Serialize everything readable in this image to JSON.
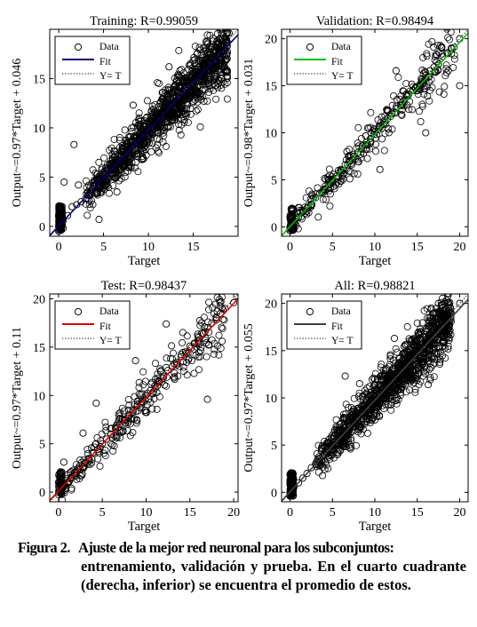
{
  "chart_data": [
    {
      "type": "scatter",
      "title": "Training: R=0.99059",
      "xlabel": "Target",
      "ylabel": "Output~=0.97*Target + 0.046",
      "xlim": [
        -1,
        20
      ],
      "ylim": [
        -1,
        20
      ],
      "xticks": [
        0,
        5,
        10,
        15
      ],
      "yticks": [
        0,
        5,
        10,
        15
      ],
      "fit": {
        "slope": 0.97,
        "intercept": 0.046,
        "color": "#000080"
      },
      "legend": {
        "position": "top-left",
        "entries": [
          "Data",
          "Fit",
          "Y= T"
        ]
      },
      "density": "high",
      "series": [
        {
          "name": "Data",
          "x": [
            0,
            0,
            0,
            0.2,
            0.5,
            1,
            1.5,
            2,
            2.5,
            3,
            3.5,
            4,
            4.5,
            5,
            5.5,
            6,
            6.5,
            7,
            7.5,
            8,
            8.5,
            9,
            9.5,
            10,
            10.5,
            11,
            11.5,
            12,
            12.5,
            13,
            13.5,
            14,
            14.5,
            15,
            15.5,
            16,
            16.5,
            17,
            17.5,
            18,
            19,
            1.7,
            0.6,
            4.5,
            12.3,
            14,
            0.5,
            2.2,
            6.5,
            8.3,
            16.2
          ],
          "y": [
            0,
            1.2,
            -0.5,
            2,
            0.6,
            1.1,
            2,
            2.2,
            2.5,
            2.8,
            3.6,
            4.1,
            4.5,
            5,
            5.6,
            6.2,
            6.5,
            6.8,
            7.5,
            8,
            8.7,
            9.1,
            9.4,
            10,
            10.6,
            11,
            11.6,
            12.1,
            12.5,
            12.7,
            13.4,
            14,
            14.6,
            14.9,
            15.5,
            15.8,
            16.2,
            17,
            17.3,
            18,
            19.6,
            8.3,
            4.5,
            0.7,
            16.2,
            10.8,
            -0.2,
            4.2,
            3.5,
            12.3,
            12.7
          ]
        }
      ]
    },
    {
      "type": "scatter",
      "title": "Validation: R=0.98494",
      "xlabel": "Target",
      "ylabel": "Output~=0.98*Target + 0.031",
      "xlim": [
        -1,
        21
      ],
      "ylim": [
        -1,
        21
      ],
      "xticks": [
        0,
        5,
        10,
        15,
        20
      ],
      "yticks": [
        0,
        5,
        10,
        15,
        20
      ],
      "fit": {
        "slope": 0.98,
        "intercept": 0.031,
        "color": "#00c000"
      },
      "legend": {
        "position": "top-left",
        "entries": [
          "Data",
          "Fit",
          "Y= T"
        ]
      },
      "density": "medium",
      "series": [
        {
          "name": "Data",
          "x": [
            0,
            0,
            0,
            0.5,
            1,
            1.5,
            2,
            2.5,
            3,
            3.5,
            4,
            4.5,
            5,
            5.5,
            6,
            6.5,
            7,
            7.5,
            8,
            8.5,
            9,
            9.5,
            10,
            10.5,
            11,
            11.5,
            12,
            12.5,
            13,
            13.5,
            14,
            14.5,
            15,
            15.5,
            16,
            16.5,
            17,
            17.5,
            18,
            18.5,
            19,
            20,
            20,
            12.5,
            16,
            6.7,
            10.6
          ],
          "y": [
            0,
            1,
            -0.4,
            0.4,
            1,
            1.6,
            2,
            2.4,
            3.1,
            3.6,
            4,
            4.5,
            5,
            5.4,
            6.1,
            6.6,
            7,
            7.5,
            7.9,
            8.6,
            9,
            9.4,
            10.1,
            10.6,
            10.9,
            11.5,
            12,
            12.6,
            12.9,
            13.5,
            14.1,
            14.5,
            14.9,
            15.4,
            16.1,
            16.6,
            17,
            17.3,
            18.1,
            18.5,
            19,
            20,
            15,
            16.6,
            10,
            8,
            6.1
          ]
        }
      ]
    },
    {
      "type": "scatter",
      "title": "Test: R=0.98437",
      "xlabel": "Target",
      "ylabel": "Output~=0.97*Target + 0.11",
      "xlim": [
        -1,
        20.5
      ],
      "ylim": [
        -1,
        20.5
      ],
      "xticks": [
        0,
        5,
        10,
        15,
        20
      ],
      "yticks": [
        0,
        5,
        10,
        15,
        20
      ],
      "fit": {
        "slope": 0.97,
        "intercept": 0.11,
        "color": "#e00000"
      },
      "legend": {
        "position": "top-left",
        "entries": [
          "Data",
          "Fit",
          "Y= T"
        ]
      },
      "density": "medium",
      "series": [
        {
          "name": "Data",
          "x": [
            0,
            0,
            0.5,
            1,
            1.5,
            2,
            2.5,
            3,
            3.5,
            4,
            4.5,
            5,
            5.5,
            6,
            6.5,
            7,
            7.5,
            8,
            8.5,
            9,
            9.5,
            10,
            10.5,
            11,
            11.5,
            12,
            12.5,
            13,
            13.5,
            14,
            14.5,
            15,
            15.5,
            16,
            16.5,
            17,
            17.5,
            18,
            18.5,
            19,
            20,
            12.3,
            8.8,
            2.8,
            17,
            0.6,
            4.3
          ],
          "y": [
            0,
            1,
            0.5,
            0.9,
            1.5,
            2.1,
            2.4,
            3,
            3.4,
            4.1,
            4.4,
            5,
            5.5,
            6,
            6.6,
            7,
            7.4,
            8,
            8.5,
            9.1,
            9.4,
            10,
            10.5,
            11,
            11.4,
            12,
            12.6,
            13,
            13.3,
            14,
            14.5,
            15.1,
            15.4,
            16,
            16.4,
            17,
            17.5,
            18.1,
            18.5,
            19,
            19.6,
            17.4,
            13.6,
            6.1,
            9.6,
            3.1,
            9.2
          ]
        }
      ]
    },
    {
      "type": "scatter",
      "title": "All: R=0.98821",
      "xlabel": "Target",
      "ylabel": "Output~=0.97*Target + 0.055",
      "xlim": [
        -1,
        21
      ],
      "ylim": [
        -1,
        21
      ],
      "xticks": [
        0,
        5,
        10,
        15,
        20
      ],
      "yticks": [
        0,
        5,
        10,
        15,
        20
      ],
      "fit": {
        "slope": 0.97,
        "intercept": 0.055,
        "color": "#404040"
      },
      "legend": {
        "position": "top-left",
        "entries": [
          "Data",
          "Fit",
          "Y= T"
        ]
      },
      "density": "high",
      "series": [
        {
          "name": "Data",
          "x": [
            0,
            0,
            0,
            0.5,
            1,
            1.5,
            2,
            2.5,
            3,
            3.5,
            4,
            4.5,
            5,
            5.5,
            6,
            6.5,
            7,
            7.5,
            8,
            8.5,
            9,
            9.5,
            10,
            10.5,
            11,
            11.5,
            12,
            12.5,
            13,
            13.5,
            14,
            14.5,
            15,
            15.5,
            16,
            16.5,
            17,
            17.5,
            18,
            19,
            20,
            6.5,
            8.2,
            12.3,
            16.3,
            17.5
          ],
          "y": [
            0,
            1.1,
            -0.4,
            0.6,
            1,
            1.5,
            2,
            2.6,
            3,
            3.6,
            4,
            4.5,
            5,
            5.6,
            6,
            6.5,
            7.1,
            7.4,
            8,
            8.5,
            9,
            9.6,
            10.1,
            10.5,
            11,
            11.5,
            12,
            12.5,
            13,
            13.6,
            14,
            14.4,
            15,
            15.5,
            16,
            16.3,
            17,
            17.4,
            18,
            19,
            20,
            12.3,
            11.5,
            16.3,
            11.4,
            20
          ]
        }
      ]
    }
  ],
  "caption": {
    "label": "Figura 2.",
    "line1": "Ajuste de la mejor red neuronal para los subconjuntos:",
    "rest": "entrenamiento, validación y prueba. En el cuarto cuadrante (derecha, inferior) se encuentra el promedio de estos."
  }
}
